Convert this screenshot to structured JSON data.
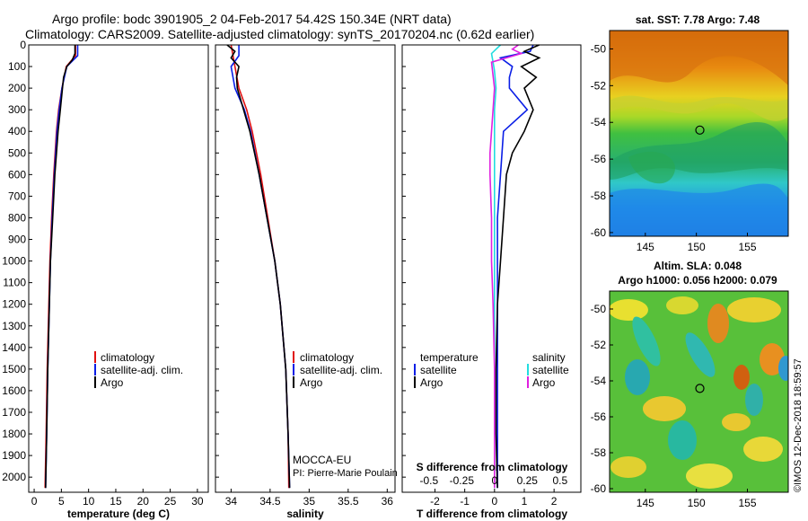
{
  "header": {
    "line1": "Argo profile: bodc 3901905_2 04-Feb-2017 54.42S 150.34E (NRT data)",
    "line2": "Climatology: CARS2009. Satellite-adjusted climatology: synTS_20170204.nc (0.62d earlier)"
  },
  "colors": {
    "climatology": "#e01010",
    "satellite": "#0a1ee6",
    "argo": "#000000",
    "sal_satellite": "#22dde0",
    "sal_diff": "#e020e0"
  },
  "depth_ticks": [
    0,
    100,
    200,
    300,
    400,
    500,
    600,
    700,
    800,
    900,
    1000,
    1100,
    1200,
    1300,
    1400,
    1500,
    1600,
    1700,
    1800,
    1900,
    2000
  ],
  "chart_data": [
    {
      "id": "temperature-profile",
      "type": "line",
      "xlabel": "temperature (deg C)",
      "xlim": [
        -1,
        32
      ],
      "ylim": [
        2070,
        0
      ],
      "xticks": [
        0,
        5,
        10,
        15,
        20,
        25,
        30
      ],
      "legend": [
        "climatology",
        "satellite-adj. clim.",
        "Argo"
      ],
      "series": [
        {
          "name": "climatology",
          "color": "#e01010",
          "y": [
            0,
            50,
            100,
            200,
            300,
            400,
            600,
            800,
            1000,
            1200,
            1500,
            1800,
            2050
          ],
          "x": [
            7.6,
            7.6,
            5.9,
            5.1,
            4.5,
            4.1,
            3.6,
            3.2,
            2.9,
            2.7,
            2.4,
            2.2,
            2.0
          ]
        },
        {
          "name": "satellite-adj. clim.",
          "color": "#0a1ee6",
          "y": [
            0,
            50,
            100,
            200,
            300,
            400,
            600,
            800,
            1000,
            1200,
            1500,
            1800,
            2050
          ],
          "x": [
            8.0,
            8.0,
            6.0,
            5.1,
            4.6,
            4.2,
            3.7,
            3.3,
            3.0,
            2.8,
            2.5,
            2.3,
            2.1
          ]
        },
        {
          "name": "Argo",
          "color": "#000000",
          "y": [
            0,
            40,
            70,
            100,
            150,
            200,
            300,
            400,
            500,
            600,
            800,
            1000,
            1200,
            1500,
            1800,
            2050
          ],
          "x": [
            7.5,
            7.5,
            7.0,
            6.0,
            5.4,
            5.2,
            4.8,
            4.4,
            4.1,
            3.8,
            3.4,
            3.0,
            2.8,
            2.5,
            2.3,
            2.1
          ]
        }
      ]
    },
    {
      "id": "salinity-profile",
      "type": "line",
      "xlabel": "salinity",
      "xlim": [
        33.8,
        36.1
      ],
      "ylim": [
        2070,
        0
      ],
      "xticks": [
        34,
        34.5,
        35,
        35.5,
        36
      ],
      "legend": [
        "climatology",
        "satellite-adj. clim.",
        "Argo"
      ],
      "annotations": [
        "MOCCA-EU",
        "PI: Pierre-Marie Poulain"
      ],
      "series": [
        {
          "name": "climatology",
          "color": "#e01010",
          "y": [
            0,
            100,
            200,
            300,
            400,
            600,
            800,
            1000,
            1200,
            1500,
            1800,
            2050
          ],
          "x": [
            34.0,
            34.05,
            34.1,
            34.2,
            34.27,
            34.38,
            34.47,
            34.56,
            34.63,
            34.7,
            34.73,
            34.74
          ]
        },
        {
          "name": "satellite-adj. clim.",
          "color": "#0a1ee6",
          "y": [
            0,
            50,
            100,
            200,
            300,
            400,
            600,
            800,
            1000,
            1200,
            1500,
            1800,
            2050
          ],
          "x": [
            34.1,
            34.1,
            34.0,
            34.05,
            34.17,
            34.25,
            34.36,
            34.46,
            34.56,
            34.63,
            34.7,
            34.73,
            34.75
          ]
        },
        {
          "name": "Argo",
          "color": "#000000",
          "y": [
            0,
            30,
            60,
            100,
            150,
            200,
            300,
            400,
            600,
            800,
            1000,
            1200,
            1500,
            1800,
            2050
          ],
          "x": [
            33.95,
            34.05,
            34.0,
            34.1,
            34.07,
            34.08,
            34.16,
            34.24,
            34.36,
            34.46,
            34.56,
            34.63,
            34.7,
            34.73,
            34.75
          ]
        }
      ]
    },
    {
      "id": "difference-profile",
      "type": "line",
      "xlabel": "T difference from climatology",
      "xlabel_top": "S difference from climatology",
      "xlim": [
        -3.1,
        2.9
      ],
      "ylim": [
        2070,
        0
      ],
      "xticks": [
        -2,
        -1,
        0,
        1,
        2
      ],
      "xticks_top": [
        "-0.5",
        "-0.25",
        "0",
        "0.25",
        "0.5"
      ],
      "legend_left_title": "temperature",
      "legend_right_title": "salinity",
      "legend_left": [
        "satellite",
        "Argo"
      ],
      "legend_right": [
        "satellite",
        "Argo"
      ],
      "series": [
        {
          "name": "T satellite",
          "color": "#0a1ee6",
          "y": [
            0,
            30,
            60,
            100,
            150,
            200,
            300,
            400,
            600,
            800,
            1000,
            1500,
            2050
          ],
          "x": [
            1.3,
            1.2,
            0.2,
            0.6,
            0.5,
            0.5,
            1.1,
            0.3,
            0.2,
            0.1,
            0.1,
            0.1,
            0.1
          ]
        },
        {
          "name": "T Argo",
          "color": "#000000",
          "y": [
            0,
            30,
            60,
            100,
            150,
            200,
            300,
            400,
            500,
            600,
            800,
            1000,
            1200,
            1500,
            1800,
            2050
          ],
          "x": [
            1.5,
            1.0,
            1.5,
            0.9,
            1.4,
            1.0,
            1.3,
            1.0,
            0.6,
            0.4,
            0.3,
            0.2,
            0.1,
            0.05,
            0.05,
            0.1
          ]
        },
        {
          "name": "S satellite",
          "color": "#22dde0",
          "y": [
            0,
            40,
            80,
            120,
            200,
            300,
            400,
            600,
            800,
            1000,
            1500,
            2050
          ],
          "x": [
            0.2,
            -0.1,
            -0.05,
            0.0,
            0.05,
            0.0,
            0.0,
            0.0,
            0.0,
            0.0,
            0.0,
            0.0
          ]
        },
        {
          "name": "S Argo",
          "color": "#e020e0",
          "y": [
            0,
            20,
            40,
            80,
            200,
            300,
            400,
            500,
            600,
            800,
            1000,
            1200,
            1500,
            1800,
            2050
          ],
          "x": [
            0.8,
            0.6,
            0.9,
            -0.1,
            0.0,
            -0.05,
            -0.1,
            -0.15,
            -0.15,
            -0.1,
            -0.1,
            -0.05,
            0.0,
            0.0,
            0.0
          ]
        }
      ]
    },
    {
      "id": "sst-map",
      "type": "heatmap",
      "title": "sat. SST: 7.78 Argo: 7.48",
      "xlim": [
        141.5,
        159
      ],
      "ylim": [
        -60.2,
        -49
      ],
      "xticks": [
        145,
        150,
        155
      ],
      "yticks": [
        -50,
        -52,
        -54,
        -56,
        -58,
        -60
      ],
      "marker": {
        "lon": 150.34,
        "lat": -54.42
      }
    },
    {
      "id": "sla-map",
      "type": "heatmap",
      "title": "Altim. SLA: 0.048",
      "subtitle": "Argo h1000: 0.056 h2000: 0.079",
      "xlim": [
        141.5,
        159
      ],
      "ylim": [
        -60.2,
        -49
      ],
      "xticks": [
        145,
        150,
        155
      ],
      "yticks": [
        -50,
        -52,
        -54,
        -56,
        -58,
        -60
      ],
      "marker": {
        "lon": 150.34,
        "lat": -54.42
      }
    }
  ],
  "watermark": "©IMOS 12-Dec-2018 18:59:57"
}
